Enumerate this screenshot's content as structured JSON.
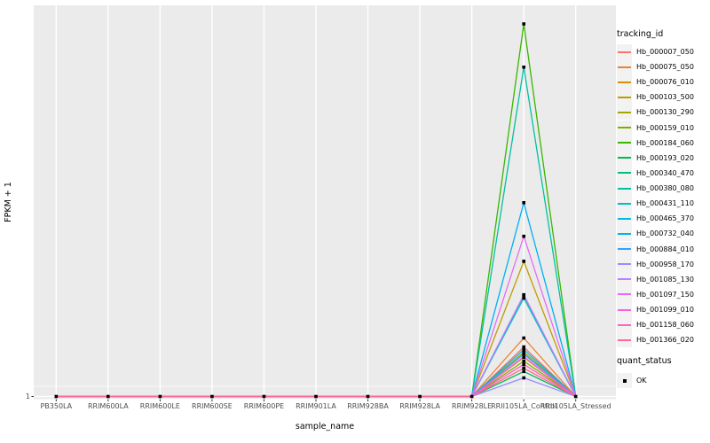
{
  "chart_data": {
    "type": "line",
    "title": "",
    "xlabel": "sample_name",
    "ylabel": "FPKM + 1",
    "x_categories": [
      "PB350LA",
      "RRIM600LA",
      "RRIM600LE",
      "RRIM600SE",
      "RRIM600PE",
      "RRIM901LA",
      "RRIM928BA",
      "RRIM928LA",
      "RRIM928LE",
      "RRII105LA_Control",
      "RRII105LA_Stressed"
    ],
    "y_tick_labels": [
      "1"
    ],
    "baseline_value": 1,
    "peak_category": "RRII105LA_Control",
    "grid": true,
    "legend_position": "right",
    "panel_background": "#ebebeb",
    "gridline_color": "#ffffff",
    "tick_text_color": "#4d4d4d",
    "marker": "filled-square",
    "marker_color": "#000000",
    "value_note": "values_rel are peak heights relative to tallest series (1.0 = max, 0 = baseline FPKM+1 = 1); all series are flat at 1 except a single peak at RRII105LA_Control",
    "legends": {
      "tracking_id_title": "tracking_id",
      "quant_status_title": "quant_status",
      "quant_status_items": [
        {
          "label": "OK",
          "marker": "filled-square",
          "color": "#000000"
        }
      ]
    },
    "series": [
      {
        "name": "Hb_000007_050",
        "color": "#F8766D",
        "values_rel": [
          0,
          0,
          0,
          0,
          0,
          0,
          0,
          0,
          0,
          0.133,
          0
        ]
      },
      {
        "name": "Hb_000075_050",
        "color": "#EA8331",
        "values_rel": [
          0,
          0,
          0,
          0,
          0,
          0,
          0,
          0,
          0,
          0.157,
          0
        ]
      },
      {
        "name": "Hb_000076_010",
        "color": "#D89000",
        "values_rel": [
          0,
          0,
          0,
          0,
          0,
          0,
          0,
          0,
          0,
          0.105,
          0
        ]
      },
      {
        "name": "Hb_000103_500",
        "color": "#C09B00",
        "values_rel": [
          0,
          0,
          0,
          0,
          0,
          0,
          0,
          0,
          0,
          0.363,
          0
        ]
      },
      {
        "name": "Hb_000130_290",
        "color": "#A3A500",
        "values_rel": [
          0,
          0,
          0,
          0,
          0,
          0,
          0,
          0,
          0,
          0.119,
          0
        ]
      },
      {
        "name": "Hb_000159_010",
        "color": "#7CAE00",
        "values_rel": [
          0,
          0,
          0,
          0,
          0,
          0,
          0,
          0,
          0,
          0.095,
          0
        ]
      },
      {
        "name": "Hb_000184_060",
        "color": "#39B600",
        "values_rel": [
          0,
          0,
          0,
          0,
          0,
          0,
          0,
          0,
          0,
          1.0,
          0
        ]
      },
      {
        "name": "Hb_000193_020",
        "color": "#00BB4E",
        "values_rel": [
          0,
          0,
          0,
          0,
          0,
          0,
          0,
          0,
          0,
          0.067,
          0
        ]
      },
      {
        "name": "Hb_000340_470",
        "color": "#00BF7D",
        "values_rel": [
          0,
          0,
          0,
          0,
          0,
          0,
          0,
          0,
          0,
          0.271,
          0
        ]
      },
      {
        "name": "Hb_000380_080",
        "color": "#00C1A3",
        "values_rel": [
          0,
          0,
          0,
          0,
          0,
          0,
          0,
          0,
          0,
          0.884,
          0
        ]
      },
      {
        "name": "Hb_000431_110",
        "color": "#00BFC4",
        "values_rel": [
          0,
          0,
          0,
          0,
          0,
          0,
          0,
          0,
          0,
          0.264,
          0
        ]
      },
      {
        "name": "Hb_000465_370",
        "color": "#00BAE0",
        "values_rel": [
          0,
          0,
          0,
          0,
          0,
          0,
          0,
          0,
          0,
          0.126,
          0
        ]
      },
      {
        "name": "Hb_000732_040",
        "color": "#00B0F6",
        "values_rel": [
          0,
          0,
          0,
          0,
          0,
          0,
          0,
          0,
          0,
          0.52,
          0
        ]
      },
      {
        "name": "Hb_000884_010",
        "color": "#35A2FF",
        "values_rel": [
          0,
          0,
          0,
          0,
          0,
          0,
          0,
          0,
          0,
          0.114,
          0
        ]
      },
      {
        "name": "Hb_000958_170",
        "color": "#9590FF",
        "values_rel": [
          0,
          0,
          0,
          0,
          0,
          0,
          0,
          0,
          0,
          0.05,
          0
        ]
      },
      {
        "name": "Hb_001085_130",
        "color": "#C77CFF",
        "values_rel": [
          0,
          0,
          0,
          0,
          0,
          0,
          0,
          0,
          0,
          0.273,
          0
        ]
      },
      {
        "name": "Hb_001097_150",
        "color": "#E76BF3",
        "values_rel": [
          0,
          0,
          0,
          0,
          0,
          0,
          0,
          0,
          0,
          0.43,
          0
        ]
      },
      {
        "name": "Hb_001099_010",
        "color": "#FA62DB",
        "values_rel": [
          0,
          0,
          0,
          0,
          0,
          0,
          0,
          0,
          0,
          0.107,
          0
        ]
      },
      {
        "name": "Hb_001158_060",
        "color": "#FF62BC",
        "values_rel": [
          0,
          0,
          0,
          0,
          0,
          0,
          0,
          0,
          0,
          0.086,
          0
        ]
      },
      {
        "name": "Hb_001366_020",
        "color": "#FF6A98",
        "values_rel": [
          0,
          0,
          0,
          0,
          0,
          0,
          0,
          0,
          0,
          0.076,
          0
        ]
      }
    ]
  }
}
